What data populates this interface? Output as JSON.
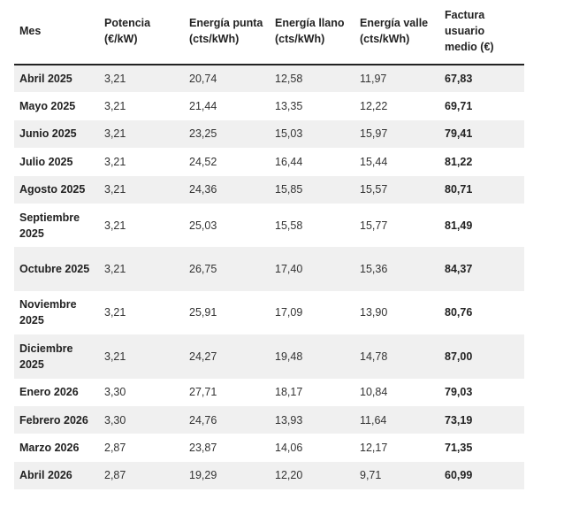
{
  "table": {
    "headers": [
      "Mes",
      "Potencia (€/kW)",
      "Energía punta (cts/kWh)",
      "Energía llano (cts/kWh)",
      "Energía valle (cts/kWh)",
      "Factura usuario medio (€)"
    ],
    "rows": [
      {
        "mes": "Abril 2025",
        "potencia": "3,21",
        "punta": "20,74",
        "llano": "12,58",
        "valle": "11,97",
        "factura": "67,83"
      },
      {
        "mes": "Mayo 2025",
        "potencia": "3,21",
        "punta": "21,44",
        "llano": "13,35",
        "valle": "12,22",
        "factura": "69,71"
      },
      {
        "mes": "Junio 2025",
        "potencia": "3,21",
        "punta": "23,25",
        "llano": "15,03",
        "valle": "15,97",
        "factura": "79,41"
      },
      {
        "mes": "Julio 2025",
        "potencia": "3,21",
        "punta": "24,52",
        "llano": "16,44",
        "valle": "15,44",
        "factura": "81,22"
      },
      {
        "mes": "Agosto 2025",
        "potencia": "3,21",
        "punta": "24,36",
        "llano": "15,85",
        "valle": "15,57",
        "factura": "80,71"
      },
      {
        "mes": "Septiembre 2025",
        "potencia": "3,21",
        "punta": "25,03",
        "llano": "15,58",
        "valle": "15,77",
        "factura": "81,49"
      },
      {
        "mes": "Octubre 2025",
        "potencia": "3,21",
        "punta": "26,75",
        "llano": "17,40",
        "valle": "15,36",
        "factura": "84,37"
      },
      {
        "mes": "Noviembre 2025",
        "potencia": "3,21",
        "punta": "25,91",
        "llano": "17,09",
        "valle": "13,90",
        "factura": "80,76"
      },
      {
        "mes": "Diciembre 2025",
        "potencia": "3,21",
        "punta": "24,27",
        "llano": "19,48",
        "valle": "14,78",
        "factura": "87,00"
      },
      {
        "mes": "Enero 2026",
        "potencia": "3,30",
        "punta": "27,71",
        "llano": "18,17",
        "valle": "10,84",
        "factura": "79,03"
      },
      {
        "mes": "Febrero 2026",
        "potencia": "3,30",
        "punta": "24,76",
        "llano": "13,93",
        "valle": "11,64",
        "factura": "73,19"
      },
      {
        "mes": "Marzo 2026",
        "potencia": "2,87",
        "punta": "23,87",
        "llano": "14,06",
        "valle": "12,17",
        "factura": "71,35"
      },
      {
        "mes": "Abril 2026",
        "potencia": "2,87",
        "punta": "19,29",
        "llano": "12,20",
        "valle": "9,71",
        "factura": "60,99"
      }
    ]
  },
  "colors": {
    "header_rule": "#222222",
    "row_shade": "#f0f0f0"
  }
}
